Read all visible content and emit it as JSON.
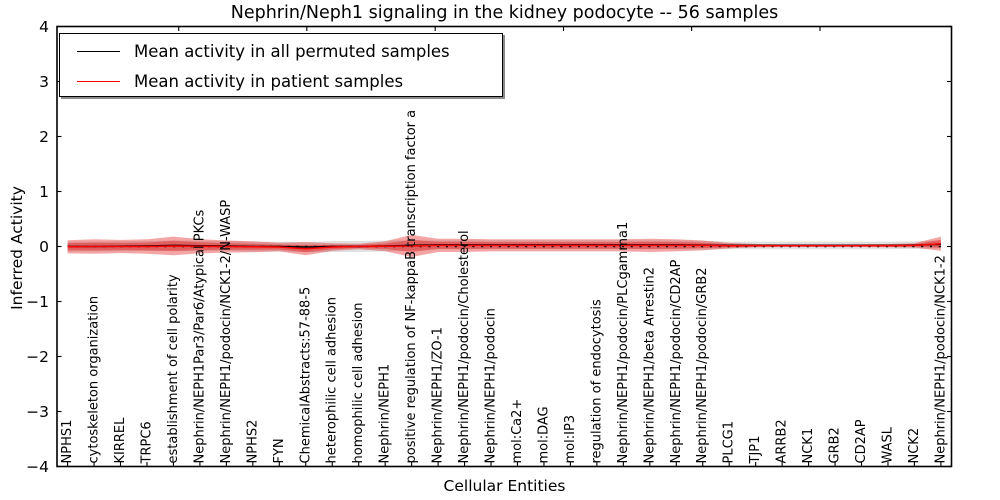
{
  "chart": {
    "title": "Nephrin/Neph1 signaling in the kidney podocyte -- 56 samples",
    "xlabel": "Cellular Entities",
    "ylabel": "Inferred Activity"
  },
  "legend": {
    "items": [
      {
        "label": "Mean activity in all permuted samples",
        "color": "#000000"
      },
      {
        "label": "Mean activity in patient samples",
        "color": "#ff0000"
      }
    ]
  },
  "chart_data": {
    "type": "line",
    "title": "Nephrin/Neph1 signaling in the kidney podocyte -- 56 samples",
    "xlabel": "Cellular Entities",
    "ylabel": "Inferred Activity",
    "ylim": [
      -4,
      4
    ],
    "yticks": [
      4,
      3,
      2,
      1,
      0,
      -1,
      -2,
      -3,
      -4
    ],
    "ytick_labels": [
      "4",
      "3",
      "2",
      "1",
      "0",
      "−1",
      "−2",
      "−3",
      "−4"
    ],
    "grid": false,
    "legend_position": "upper left",
    "zero_line": 0,
    "categories": [
      "NPHS1",
      "cytoskeleton organization",
      "KIRREL",
      "TRPC6",
      "establishment of cell polarity",
      "Nephrin/NEPH1Par3/Par6/Atypical PKCs",
      "Nephrin/NEPH1/podocin/NCK1-2/N-WASP",
      "NPHS2",
      "FYN",
      "ChemicalAbstracts:57-88-5",
      "heterophilic cell adhesion",
      "homophilic cell adhesion",
      "Nephrin/NEPH1",
      "positive regulation of NF-kappaB transcription factor a",
      "Nephrin/NEPH1/ZO-1",
      "Nephrin/NEPH1/podocin/Cholesterol",
      "Nephrin/NEPH1/podocin",
      "mol:Ca2+",
      "mol:DAG",
      "mol:IP3",
      "regulation of endocytosis",
      "Nephrin/NEPH1/podocin/PLCgamma1",
      "Nephrin/NEPH1/beta Arrestin2",
      "Nephrin/NEPH1/podocin/CD2AP",
      "Nephrin/NEPH1/podocin/GRB2",
      "PLCG1",
      "TJP1",
      "ARRB2",
      "NCK1",
      "GRB2",
      "CD2AP",
      "WASL",
      "NCK2",
      "Nephrin/NEPH1/podocin/NCK1-2"
    ],
    "series": [
      {
        "name": "Mean activity in all permuted samples",
        "color": "#000000",
        "band_color": "#000000",
        "band_opacity": 0.12,
        "values": [
          0,
          0,
          0.005,
          0.01,
          0.02,
          0.015,
          0.01,
          0,
          0,
          -0.01,
          0,
          0,
          0.01,
          0.02,
          0.03,
          0.03,
          0.03,
          0.03,
          0.03,
          0.03,
          0.03,
          0.03,
          0.03,
          0.03,
          0.025,
          0.02,
          0.02,
          0.02,
          0.02,
          0.02,
          0.02,
          0.02,
          0.025,
          0.04
        ],
        "band": [
          0.09,
          0.09,
          0.09,
          0.09,
          0.09,
          0.09,
          0.09,
          0.09,
          0.09,
          0.09,
          0.1,
          0.1,
          0.1,
          0.09,
          0.08,
          0.08,
          0.08,
          0.08,
          0.08,
          0.08,
          0.08,
          0.08,
          0.08,
          0.08,
          0.08,
          0.07,
          0.07,
          0.07,
          0.07,
          0.07,
          0.07,
          0.07,
          0.07,
          0.07
        ]
      },
      {
        "name": "Mean activity in patient samples",
        "color": "#ff0000",
        "band_color": "#e00000",
        "band_opacity": 0.35,
        "values": [
          -0.005,
          0,
          0,
          0,
          0.01,
          0.005,
          0,
          -0.005,
          -0.01,
          -0.04,
          -0.01,
          0,
          0.005,
          0.01,
          0.02,
          0.02,
          0.02,
          0.02,
          0.02,
          0.02,
          0.02,
          0.02,
          0.02,
          0.02,
          0.02,
          0.015,
          0.015,
          0.015,
          0.015,
          0.015,
          0.015,
          0.015,
          0.02,
          0.05
        ],
        "band": [
          0.12,
          0.13,
          0.12,
          0.13,
          0.17,
          0.13,
          0.11,
          0.1,
          0.08,
          0.12,
          0.07,
          0.05,
          0.09,
          0.2,
          0.12,
          0.12,
          0.11,
          0.11,
          0.11,
          0.11,
          0.11,
          0.11,
          0.12,
          0.11,
          0.09,
          0.05,
          0.03,
          0.025,
          0.025,
          0.025,
          0.025,
          0.03,
          0.04,
          0.13
        ]
      }
    ]
  }
}
